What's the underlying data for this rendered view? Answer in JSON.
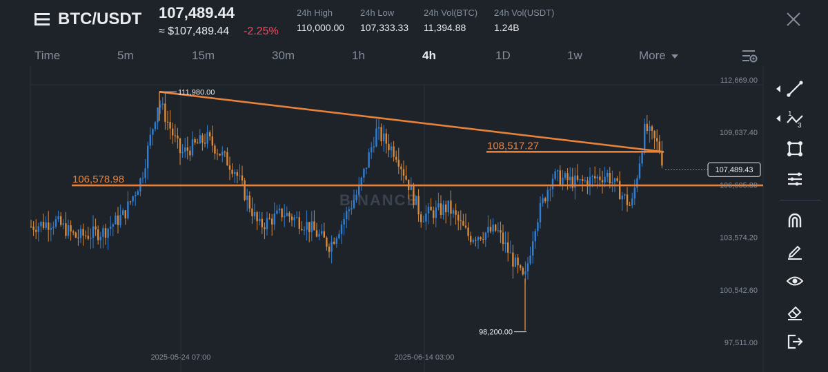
{
  "header": {
    "pair": "BTC/USDT",
    "last_price": "107,489.44",
    "approx_price": "≈ $107,489.44",
    "change": "-2.25%",
    "stats": [
      {
        "label": "24h High",
        "value": "110,000.00"
      },
      {
        "label": "24h Low",
        "value": "107,333.33"
      },
      {
        "label": "24h Vol(BTC)",
        "value": "11,394.88"
      },
      {
        "label": "24h Vol(USDT)",
        "value": "1.24B"
      }
    ]
  },
  "timeframes": {
    "items": [
      "Time",
      "5m",
      "15m",
      "30m",
      "1h",
      "4h",
      "1D",
      "1w",
      "More"
    ],
    "active": "4h"
  },
  "chart": {
    "watermark": "BINANCE",
    "y_ticks": [
      "112,669.00",
      "109,637.40",
      "106,605.80",
      "103,574.20",
      "100,542.60",
      "97,511.00"
    ],
    "x_ticks": [
      "2025-05-24 07:00",
      "2025-06-14 03:00"
    ],
    "high_label": "111,980.00",
    "low_label": "98,200.00",
    "current_price_tag": "107,489.43",
    "levels": [
      {
        "label": "106,578.98",
        "value": 106578.98
      },
      {
        "label": "108,517.27",
        "value": 108517.27
      }
    ],
    "colors": {
      "up": "#2f7fd6",
      "down": "#d98a3a",
      "lines": "#e8823a",
      "bg": "#1e2329"
    }
  },
  "toolbar": {
    "tools": [
      "trend-line-icon",
      "fib-tool-icon",
      "shape-icon",
      "text-lines-icon",
      "magnet-icon",
      "pencil-icon",
      "eye-icon",
      "eraser-icon",
      "exit-icon"
    ]
  }
}
